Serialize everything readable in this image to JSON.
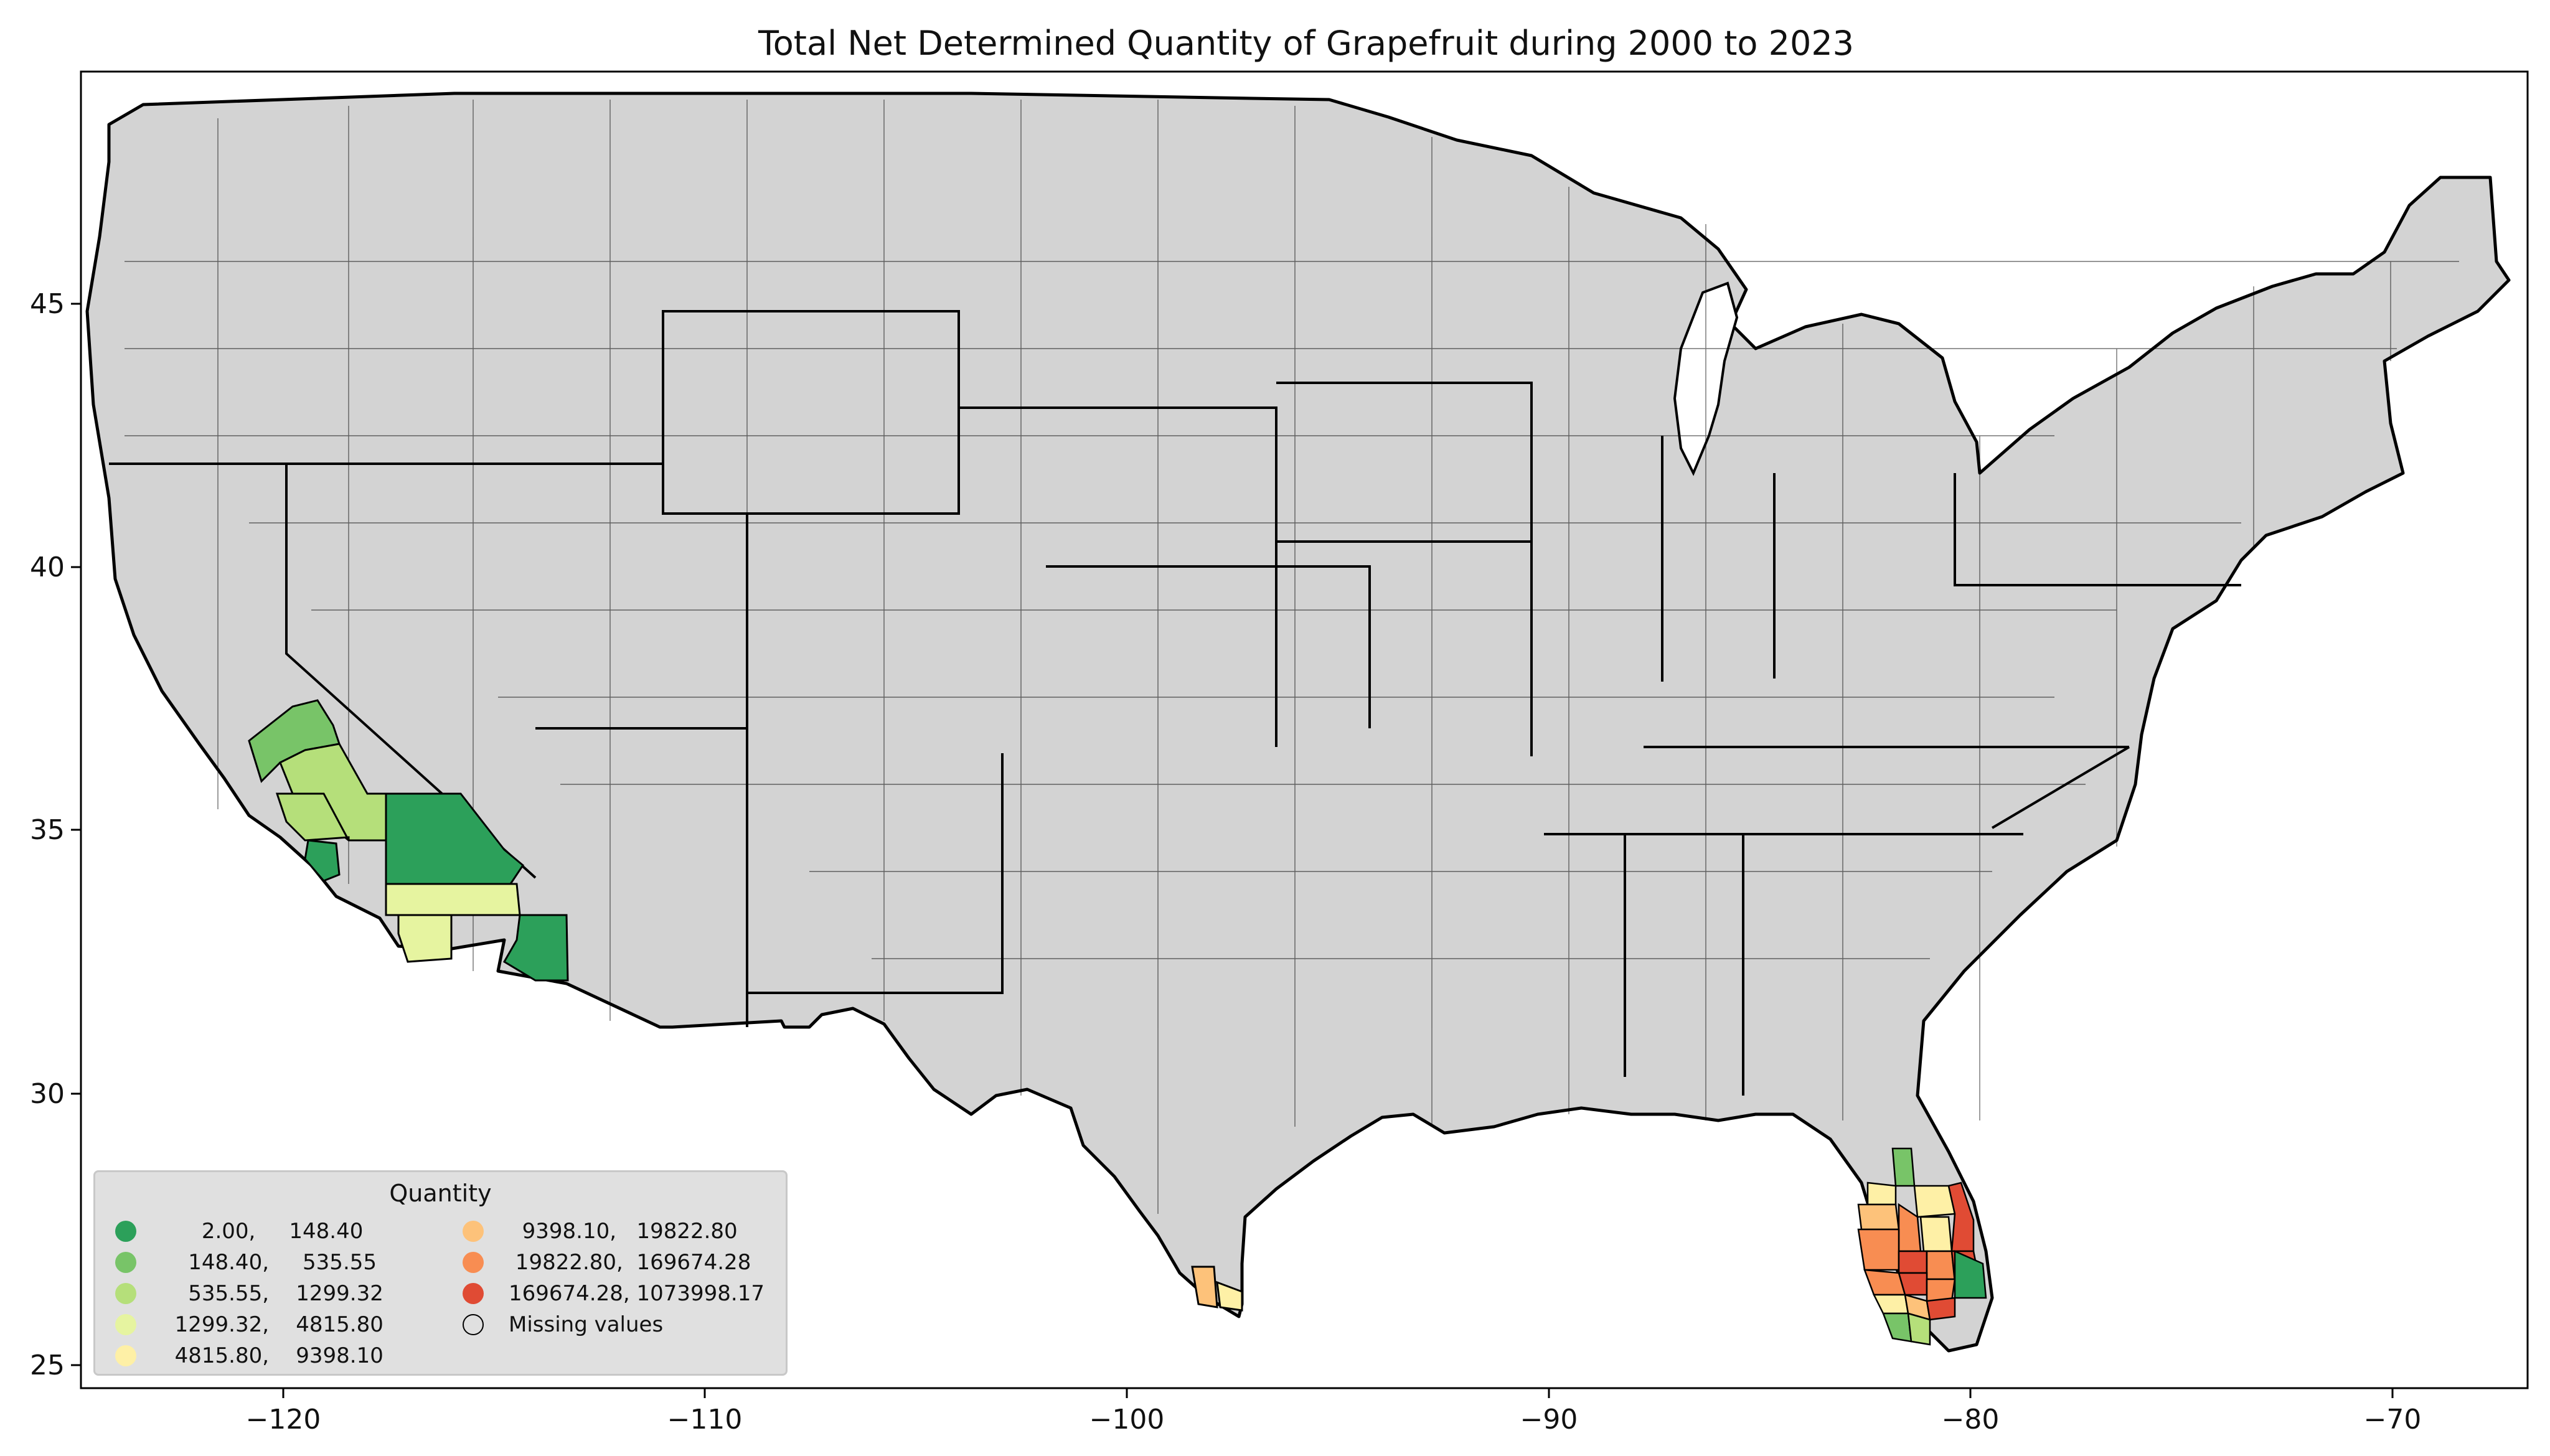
{
  "chart_data": {
    "type": "choropleth map",
    "title": "Total Net Determined Quantity of Grapefruit during 2000 to 2023",
    "xlabel": "",
    "ylabel": "",
    "xlim": [
      -125,
      -66.5
    ],
    "ylim": [
      24.5,
      49.5
    ],
    "x_ticks": [
      "−120",
      "−110",
      "−100",
      "−90",
      "−80",
      "−70"
    ],
    "y_ticks": [
      "25",
      "30",
      "35",
      "40",
      "45"
    ],
    "default_fill": "#d3d3d3",
    "legend": {
      "title": "Quantity",
      "placement": "lower-left",
      "items": [
        {
          "label": "      2.00,     148.40",
          "color": "#2ca05a"
        },
        {
          "label": "    148.40,     535.55",
          "color": "#78c468"
        },
        {
          "label": "    535.55,    1299.32",
          "color": "#b5df7a"
        },
        {
          "label": "  1299.32,    4815.80",
          "color": "#e6f4a0"
        },
        {
          "label": "  4815.80,    9398.10",
          "color": "#fef0a6"
        },
        {
          "label": "  9398.10,   19822.80",
          "color": "#fdc27a"
        },
        {
          "label": " 19822.80,  169674.28",
          "color": "#f88d52"
        },
        {
          "label": "169674.28, 1073998.17",
          "color": "#e04b34"
        },
        {
          "label": "Missing values",
          "color": "none"
        }
      ]
    },
    "regions": [
      {
        "state": "California",
        "class": "2.00, 148.40",
        "color": "#2ca05a"
      },
      {
        "state": "California",
        "class": "148.40, 535.55",
        "color": "#78c468"
      },
      {
        "state": "California",
        "class": "535.55, 1299.32",
        "color": "#b5df7a"
      },
      {
        "state": "California",
        "class": "1299.32, 4815.80",
        "color": "#e6f4a0"
      },
      {
        "state": "Arizona",
        "class": "2.00, 148.40",
        "color": "#2ca05a"
      },
      {
        "state": "Texas",
        "class": "9398.10, 19822.80",
        "color": "#fdc27a"
      },
      {
        "state": "Texas",
        "class": "4815.80, 9398.10",
        "color": "#fef0a6"
      },
      {
        "state": "Florida",
        "class": "169674.28, 1073998.17",
        "color": "#e04b34"
      },
      {
        "state": "Florida",
        "class": "19822.80, 169674.28",
        "color": "#f88d52"
      },
      {
        "state": "Florida",
        "class": "9398.10, 19822.80",
        "color": "#fdc27a"
      },
      {
        "state": "Florida",
        "class": "4815.80, 9398.10",
        "color": "#fef0a6"
      },
      {
        "state": "Florida",
        "class": "2.00, 148.40",
        "color": "#2ca05a"
      },
      {
        "state": "Florida",
        "class": "148.40, 535.55",
        "color": "#78c468"
      },
      {
        "state": "Florida",
        "class": "535.55, 1299.32",
        "color": "#b5df7a"
      }
    ]
  }
}
